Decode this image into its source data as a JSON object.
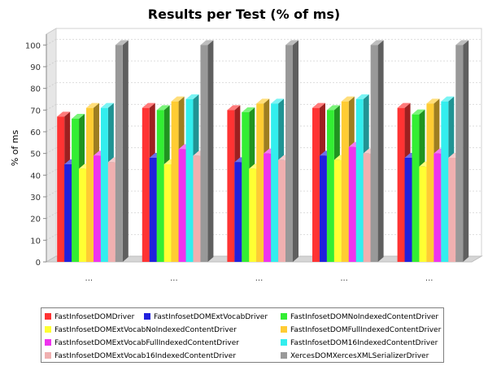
{
  "chart_data": {
    "type": "bar",
    "title": "Results per Test (% of ms)",
    "xlabel": "",
    "ylabel": "% of ms",
    "ylim": [
      0,
      105
    ],
    "yticks": [
      0,
      10,
      20,
      30,
      40,
      50,
      60,
      70,
      80,
      90,
      100
    ],
    "grid": true,
    "legend_position": "bottom",
    "categories": [
      "...",
      "...",
      "...",
      "...",
      "..."
    ],
    "series": [
      {
        "name": "FastInfosetDOMDriver",
        "color": "#ff3333",
        "values": [
          67,
          71,
          70,
          71,
          71
        ]
      },
      {
        "name": "FastInfosetDOMExtVocabDriver",
        "color": "#2020dd",
        "values": [
          45,
          48,
          46,
          49,
          48
        ]
      },
      {
        "name": "FastInfosetDOMNoIndexedContentDriver",
        "color": "#33ee33",
        "values": [
          66,
          70,
          69,
          70,
          68
        ]
      },
      {
        "name": "FastInfosetDOMExtVocabNoIndexedContentDriver",
        "color": "#ffff33",
        "values": [
          43,
          45,
          43,
          47,
          44
        ]
      },
      {
        "name": "FastInfosetDOMFullIndexedContentDriver",
        "color": "#ffcc33",
        "values": [
          71,
          74,
          73,
          74,
          73
        ]
      },
      {
        "name": "FastInfosetDOMExtVocabFullIndexedContentDriver",
        "color": "#ee33ee",
        "values": [
          49,
          52,
          50,
          53,
          50
        ]
      },
      {
        "name": "FastInfosetDOM16IndexedContentDriver",
        "color": "#33eeee",
        "values": [
          71,
          75,
          73,
          75,
          74
        ]
      },
      {
        "name": "FastInfosetDOMExtVocab16IndexedContentDriver",
        "color": "#f0b0b0",
        "values": [
          46,
          49,
          47,
          50,
          48
        ]
      },
      {
        "name": "XercesDOMXercesXMLSerializerDriver",
        "color": "#999999",
        "values": [
          100,
          100,
          100,
          100,
          100
        ]
      }
    ]
  }
}
